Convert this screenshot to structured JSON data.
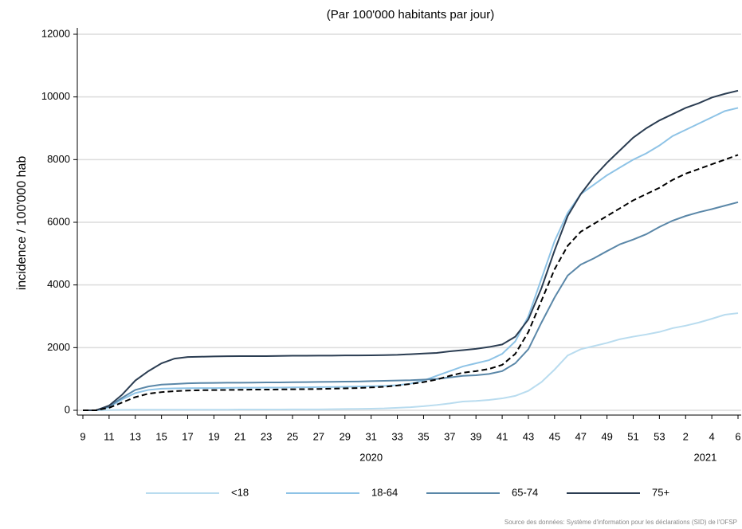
{
  "chart_data": {
    "type": "line",
    "title": "(Par 100'000 habitants par jour)",
    "y_label": "incidence / 100'000 hab",
    "source": "Source des données: Système d'information pour les déclarations (SID) de l'OFSP",
    "categories": [
      9,
      null,
      11,
      null,
      13,
      null,
      15,
      null,
      17,
      null,
      19,
      null,
      21,
      null,
      23,
      null,
      25,
      null,
      27,
      null,
      29,
      null,
      31,
      null,
      33,
      null,
      35,
      null,
      37,
      null,
      39,
      null,
      41,
      null,
      43,
      null,
      45,
      null,
      47,
      null,
      49,
      null,
      51,
      null,
      53,
      null,
      2,
      null,
      4,
      null,
      6
    ],
    "x_groups": [
      {
        "label": "2020",
        "count": 45
      },
      {
        "label": "2021",
        "count": 6
      }
    ],
    "ylim": [
      0,
      12000
    ],
    "yticks": [
      0,
      2000,
      4000,
      6000,
      8000,
      10000,
      12000
    ],
    "grid": true,
    "series": [
      {
        "name": "<18",
        "color": "#b9dcef",
        "values": [
          0,
          0,
          10,
          15,
          20,
          20,
          20,
          20,
          20,
          20,
          20,
          20,
          25,
          25,
          25,
          25,
          30,
          30,
          30,
          35,
          40,
          45,
          50,
          60,
          80,
          100,
          130,
          170,
          220,
          280,
          300,
          330,
          380,
          460,
          620,
          900,
          1300,
          1750,
          1950,
          2050,
          2150,
          2270,
          2350,
          2420,
          2500,
          2620,
          2700,
          2800,
          2920,
          3050,
          3100
        ]
      },
      {
        "name": "18-64",
        "color": "#8ec3e6",
        "values": [
          0,
          0,
          100,
          350,
          550,
          650,
          690,
          700,
          705,
          710,
          710,
          715,
          720,
          720,
          725,
          725,
          730,
          735,
          740,
          745,
          750,
          760,
          770,
          780,
          800,
          850,
          950,
          1100,
          1250,
          1400,
          1500,
          1600,
          1800,
          2200,
          3000,
          4200,
          5400,
          6300,
          6900,
          7200,
          7500,
          7750,
          8000,
          8200,
          8450,
          8750,
          8950,
          9150,
          9350,
          9550,
          9650
        ]
      },
      {
        "name": "65-74",
        "color": "#5a87a8",
        "values": [
          0,
          0,
          120,
          400,
          650,
          760,
          820,
          840,
          860,
          870,
          875,
          880,
          880,
          885,
          890,
          890,
          895,
          900,
          905,
          910,
          915,
          920,
          930,
          940,
          950,
          960,
          980,
          1000,
          1050,
          1100,
          1120,
          1160,
          1250,
          1500,
          1950,
          2800,
          3600,
          4300,
          4650,
          4850,
          5080,
          5300,
          5450,
          5620,
          5850,
          6050,
          6200,
          6320,
          6420,
          6530,
          6640
        ]
      },
      {
        "name": "75+",
        "color": "#2b3d52",
        "values": [
          0,
          0,
          150,
          500,
          950,
          1250,
          1500,
          1650,
          1700,
          1710,
          1720,
          1725,
          1730,
          1730,
          1730,
          1735,
          1740,
          1740,
          1745,
          1745,
          1750,
          1750,
          1755,
          1760,
          1770,
          1790,
          1810,
          1830,
          1880,
          1920,
          1960,
          2020,
          2100,
          2350,
          2900,
          3900,
          5100,
          6200,
          6900,
          7450,
          7900,
          8300,
          8700,
          9000,
          9250,
          9450,
          9650,
          9800,
          9980,
          10100,
          10200
        ]
      },
      {
        "color": "#000000",
        "dashed": true,
        "values": [
          0,
          0,
          80,
          250,
          420,
          530,
          580,
          610,
          630,
          640,
          645,
          650,
          655,
          660,
          660,
          665,
          670,
          675,
          680,
          690,
          700,
          710,
          730,
          750,
          790,
          840,
          900,
          980,
          1100,
          1200,
          1250,
          1320,
          1450,
          1800,
          2500,
          3500,
          4500,
          5250,
          5700,
          5950,
          6200,
          6450,
          6700,
          6900,
          7100,
          7350,
          7550,
          7700,
          7850,
          8000,
          8150
        ]
      }
    ]
  }
}
